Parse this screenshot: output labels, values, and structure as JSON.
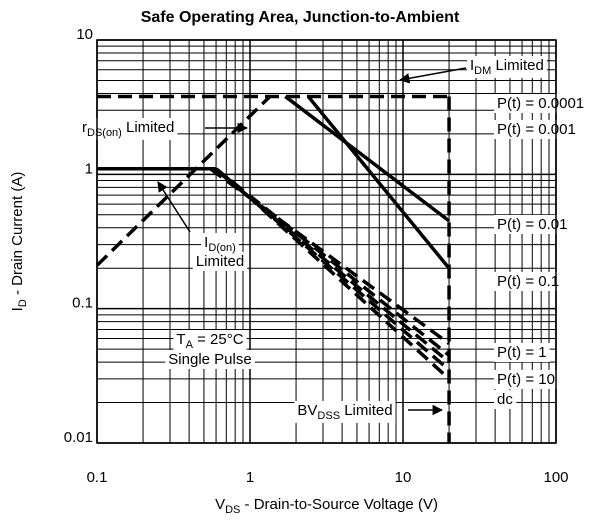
{
  "chart_data": {
    "type": "line",
    "title": "Safe Operating Area, Junction-to-Ambient",
    "x_label": [
      "V",
      "DS",
      "  -  Drain-to-Source Voltage (V)"
    ],
    "y_label": [
      "I",
      "D",
      " - Drain Current (A)"
    ],
    "xscale": "log",
    "yscale": "log",
    "grid": "minor",
    "color": "#000000",
    "xlim": [
      0.1,
      100
    ],
    "xticks": [
      0.1,
      1,
      10,
      100
    ],
    "ylim": [
      0.01,
      10
    ],
    "yticks": [
      0.01,
      0.1,
      1,
      10
    ],
    "series": [
      {
        "style": "dashed",
        "x": [
          0.1,
          20
        ],
        "values": [
          3.8,
          3.8
        ]
      },
      {
        "style": "dashed",
        "x": [
          0.1,
          1.35
        ],
        "values": [
          0.21,
          3.8
        ]
      },
      {
        "style": "solid",
        "x": [
          0.1,
          0.6
        ],
        "values": [
          1.1,
          1.1
        ]
      },
      {
        "style": "solid",
        "x": [
          1.7,
          20
        ],
        "values": [
          3.8,
          0.45
        ]
      },
      {
        "style": "solid",
        "x": [
          2.4,
          20
        ],
        "values": [
          3.8,
          0.2
        ]
      },
      {
        "style": "dashed",
        "x": [
          0.55,
          20
        ],
        "values": [
          1.1,
          0.055
        ]
      },
      {
        "style": "dashed",
        "x": [
          0.6,
          20
        ],
        "values": [
          1.1,
          0.045
        ]
      },
      {
        "style": "dashed",
        "x": [
          0.65,
          20
        ],
        "values": [
          1.0,
          0.04
        ]
      },
      {
        "style": "dashed",
        "x": [
          0.7,
          20
        ],
        "values": [
          0.95,
          0.035
        ]
      },
      {
        "style": "dashed",
        "x": [
          0.75,
          20
        ],
        "values": [
          0.9,
          0.03
        ]
      },
      {
        "style": "dashed",
        "x": [
          20,
          20
        ],
        "values": [
          3.8,
          0.01
        ]
      }
    ],
    "annotations": [
      [
        "I",
        "DM",
        " Limited"
      ],
      [
        "P(t) = 0.0001"
      ],
      [
        "P(t) = 0.001"
      ],
      [
        "r",
        "DS(on)",
        " Limited"
      ],
      [
        "P(t) = 0.01"
      ],
      [
        "P(t) = 0.1"
      ],
      [
        "I",
        "D(on)"
      ],
      [
        "Limited"
      ],
      [
        "T",
        "A",
        " = 25°C"
      ],
      [
        "Single Pulse"
      ],
      [
        "P(t) = 1"
      ],
      [
        "P(t) = 10"
      ],
      [
        "dc"
      ],
      [
        "BV",
        "DSS",
        " Limited"
      ]
    ]
  }
}
